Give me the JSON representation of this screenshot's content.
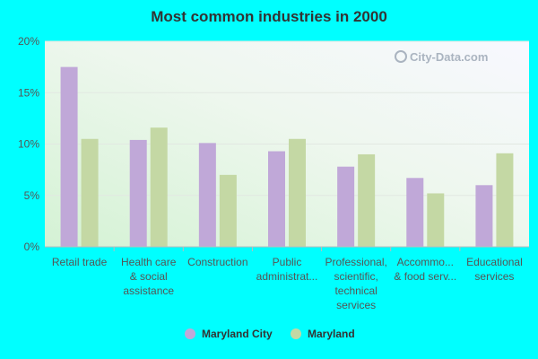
{
  "chart_data": {
    "type": "bar",
    "title": "Most common industries in 2000",
    "xlabel": "",
    "ylabel": "",
    "ylim": [
      0,
      20
    ],
    "yticks": [
      0,
      5,
      10,
      15,
      20
    ],
    "ytick_labels": [
      "0%",
      "5%",
      "10%",
      "15%",
      "20%"
    ],
    "categories": [
      [
        "Retail trade"
      ],
      [
        "Health care",
        "& social",
        "assistance"
      ],
      [
        "Construction"
      ],
      [
        "Public",
        "administrat..."
      ],
      [
        "Professional,",
        "scientific,",
        "technical",
        "services"
      ],
      [
        "Accommo...",
        "& food serv..."
      ],
      [
        "Educational",
        "services"
      ]
    ],
    "series": [
      {
        "name": "Maryland City",
        "color": "#c0a8d8",
        "values": [
          17.5,
          10.4,
          10.1,
          9.3,
          7.8,
          6.7,
          6.0
        ]
      },
      {
        "name": "Maryland",
        "color": "#c4d8a4",
        "values": [
          10.5,
          11.6,
          7.0,
          10.5,
          9.0,
          5.2,
          9.1
        ]
      }
    ],
    "legend": "bottom-center",
    "grid": true
  },
  "watermark": "City-Data.com"
}
